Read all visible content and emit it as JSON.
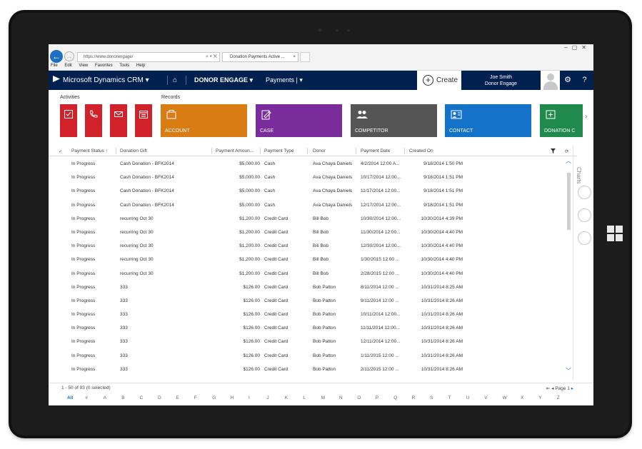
{
  "browser": {
    "url": "https://www.donorengage/",
    "tab_title": "Donation Payments Active ...",
    "tab_close": "×",
    "menus": [
      "File",
      "Edit",
      "View",
      "Favorites",
      "Tools",
      "Help"
    ]
  },
  "nav": {
    "app_name": "Microsoft Dynamics CRM",
    "area": "DONOR ENGAGE",
    "entity": "Payments",
    "create_label": "Create",
    "user_name": "Joe Smith",
    "user_org": "Donor Engage"
  },
  "tiles": {
    "activities_label": "Activities",
    "records_label": "Records",
    "activities": [
      {
        "icon": "task-icon"
      },
      {
        "icon": "phone-icon"
      },
      {
        "icon": "email-icon"
      },
      {
        "icon": "appointment-icon"
      }
    ],
    "records": [
      {
        "label": "ACCOUNT",
        "color": "#d97c13",
        "icon": "account-icon"
      },
      {
        "label": "CASE",
        "color": "#7a2b9c",
        "icon": "case-icon"
      },
      {
        "label": "COMPETITOR",
        "color": "#555555",
        "icon": "competitor-icon"
      },
      {
        "label": "CONTACT",
        "color": "#1572c9",
        "icon": "contact-icon"
      },
      {
        "label": "DONATION C",
        "color": "#1f8a4c",
        "icon": "donation-icon"
      }
    ]
  },
  "grid": {
    "columns": [
      "Payment Status",
      "Donation Gift",
      "Payment Amoun...",
      "Payment Type",
      "Donor",
      "Payment Date",
      "Created On"
    ],
    "sort_indicator": "↑",
    "rows": [
      {
        "status": "In Progress",
        "gift": "Cash Donation - BFK2014",
        "amount": "$5,000.00",
        "type": "Cash",
        "donor": "Ava Chaya Daniels",
        "date": "4/2/2014 12:00 A...",
        "created": "9/18/2014 1:50 PM"
      },
      {
        "status": "In Progress",
        "gift": "Cash Donation - BFK2014",
        "amount": "$5,000.00",
        "type": "Cash",
        "donor": "Ava Chaya Daniels",
        "date": "10/17/2014 12:00...",
        "created": "9/18/2014 1:51 PM"
      },
      {
        "status": "In Progress",
        "gift": "Cash Donation - BFK2014",
        "amount": "$5,000.00",
        "type": "Cash",
        "donor": "Ava Chaya Daniels",
        "date": "11/17/2014 12:00...",
        "created": "9/18/2014 1:51 PM"
      },
      {
        "status": "In Progress",
        "gift": "Cash Donation - BFK2014",
        "amount": "$5,000.00",
        "type": "Cash",
        "donor": "Ava Chaya Daniels",
        "date": "12/17/2014 12:00...",
        "created": "9/18/2014 1:51 PM"
      },
      {
        "status": "In Progress",
        "gift": "recurring Oct 30",
        "amount": "$1,200.00",
        "type": "Credit Card",
        "donor": "Bill Bob",
        "date": "10/30/2014 12:00...",
        "created": "10/30/2014 4:39 PM"
      },
      {
        "status": "In Progress",
        "gift": "recurring Oct 30",
        "amount": "$1,200.00",
        "type": "Credit Card",
        "donor": "Bill Bob",
        "date": "11/30/2014 12:00...",
        "created": "10/30/2014 4:40 PM"
      },
      {
        "status": "In Progress",
        "gift": "recurring Oct 30",
        "amount": "$1,200.00",
        "type": "Credit Card",
        "donor": "Bill Bob",
        "date": "12/30/2014 12:00...",
        "created": "10/30/2014 4:40 PM"
      },
      {
        "status": "In Progress",
        "gift": "recurring Oct 30",
        "amount": "$1,200.00",
        "type": "Credit Card",
        "donor": "Bill Bob",
        "date": "1/30/2015 12:00 ...",
        "created": "10/30/2014 4:40 PM"
      },
      {
        "status": "In Progress",
        "gift": "recurring Oct 30",
        "amount": "$1,200.00",
        "type": "Credit Card",
        "donor": "Bill Bob",
        "date": "2/28/2015 12:00 ...",
        "created": "10/30/2014 4:40 PM"
      },
      {
        "status": "In Progress",
        "gift": "333",
        "amount": "$126.00",
        "type": "Credit Card",
        "donor": "Bob Patton",
        "date": "8/11/2014 12:00 ...",
        "created": "10/31/2014 8:25 AM"
      },
      {
        "status": "In Progress",
        "gift": "333",
        "amount": "$126.00",
        "type": "Credit Card",
        "donor": "Bob Patton",
        "date": "9/11/2014 12:00 ...",
        "created": "10/31/2014 8:26 AM"
      },
      {
        "status": "In Progress",
        "gift": "333",
        "amount": "$126.00",
        "type": "Credit Card",
        "donor": "Bob Patton",
        "date": "10/11/2014 12:00...",
        "created": "10/31/2014 8:26 AM"
      },
      {
        "status": "In Progress",
        "gift": "333",
        "amount": "$126.00",
        "type": "Credit Card",
        "donor": "Bob Patton",
        "date": "11/11/2014 12:00...",
        "created": "10/31/2014 8:26 AM"
      },
      {
        "status": "In Progress",
        "gift": "333",
        "amount": "$126.00",
        "type": "Credit Card",
        "donor": "Bob Patton",
        "date": "12/11/2014 12:00...",
        "created": "10/31/2014 8:26 AM"
      },
      {
        "status": "In Progress",
        "gift": "333",
        "amount": "$126.00",
        "type": "Credit Card",
        "donor": "Bob Patton",
        "date": "1/11/2015 12:00 ...",
        "created": "10/31/2014 8:26 AM"
      },
      {
        "status": "In Progress",
        "gift": "333",
        "amount": "$126.00",
        "type": "Credit Card",
        "donor": "Bob Patton",
        "date": "2/11/2015 12:00 ...",
        "created": "10/31/2014 8:26 AM"
      }
    ]
  },
  "charts_label": "Charts",
  "footer": {
    "count": "1 - 50 of 93 (0 selected)",
    "page": "Page 1"
  },
  "alphabet": [
    "All",
    "#",
    "A",
    "B",
    "C",
    "D",
    "E",
    "F",
    "G",
    "H",
    "I",
    "J",
    "K",
    "L",
    "M",
    "N",
    "O",
    "P",
    "Q",
    "R",
    "S",
    "T",
    "U",
    "V",
    "W",
    "X",
    "Y",
    "Z"
  ],
  "colors": {
    "nav_bg": "#002050",
    "activity_tile": "#d1222c",
    "accent_blue": "#1e6fc2"
  }
}
